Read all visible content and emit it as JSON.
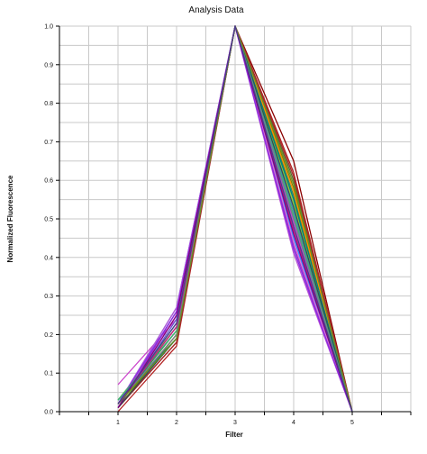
{
  "chart_data": {
    "type": "line",
    "title": "Analysis Data",
    "xlabel": "Filter",
    "ylabel": "Normalized Fluorescence",
    "xlim": [
      0,
      6
    ],
    "ylim": [
      0,
      1.0
    ],
    "x_ticks": [
      "1",
      "2",
      "3",
      "4",
      "5"
    ],
    "y_ticks": [
      "0.0",
      "0.1",
      "0.2",
      "0.3",
      "0.4",
      "0.5",
      "0.6",
      "0.7",
      "0.8",
      "0.9",
      "1.0"
    ],
    "grid": true,
    "x": [
      1,
      2,
      3,
      4,
      5
    ],
    "series": [
      {
        "color": "#cc44cc",
        "values": [
          0.07,
          0.24,
          1.0,
          0.49,
          0.0
        ]
      },
      {
        "color": "#20b2aa",
        "values": [
          0.03,
          0.22,
          1.0,
          0.55,
          0.0
        ]
      },
      {
        "color": "#1e90ff",
        "values": [
          0.02,
          0.27,
          1.0,
          0.45,
          0.0
        ]
      },
      {
        "color": "#8b0000",
        "values": [
          0.01,
          0.18,
          1.0,
          0.65,
          0.0
        ]
      },
      {
        "color": "#b22222",
        "values": [
          0.0,
          0.17,
          1.0,
          0.62,
          0.0
        ]
      },
      {
        "color": "#556b2f",
        "values": [
          0.02,
          0.19,
          1.0,
          0.6,
          0.0
        ]
      },
      {
        "color": "#808000",
        "values": [
          0.01,
          0.2,
          1.0,
          0.58,
          0.0
        ]
      },
      {
        "color": "#2e8b57",
        "values": [
          0.02,
          0.21,
          1.0,
          0.56,
          0.0
        ]
      },
      {
        "color": "#9acd32",
        "values": [
          0.03,
          0.22,
          1.0,
          0.54,
          0.0
        ]
      },
      {
        "color": "#4682b4",
        "values": [
          0.02,
          0.23,
          1.0,
          0.52,
          0.0
        ]
      },
      {
        "color": "#6a5acd",
        "values": [
          0.01,
          0.24,
          1.0,
          0.5,
          0.0
        ]
      },
      {
        "color": "#ff8c00",
        "values": [
          0.02,
          0.2,
          1.0,
          0.57,
          0.0
        ]
      },
      {
        "color": "#008080",
        "values": [
          0.03,
          0.19,
          1.0,
          0.55,
          0.0
        ]
      },
      {
        "color": "#a52a2a",
        "values": [
          0.01,
          0.18,
          1.0,
          0.61,
          0.0
        ]
      },
      {
        "color": "#9932cc",
        "values": [
          0.01,
          0.26,
          1.0,
          0.43,
          0.0
        ]
      },
      {
        "color": "#ba55d3",
        "values": [
          0.02,
          0.27,
          1.0,
          0.41,
          0.0
        ]
      },
      {
        "color": "#da70d6",
        "values": [
          0.01,
          0.25,
          1.0,
          0.44,
          0.0
        ]
      },
      {
        "color": "#8a2be2",
        "values": [
          0.02,
          0.26,
          1.0,
          0.42,
          0.0
        ]
      },
      {
        "color": "#2f4f4f",
        "values": [
          0.01,
          0.19,
          1.0,
          0.53,
          0.0
        ]
      },
      {
        "color": "#3cb371",
        "values": [
          0.03,
          0.21,
          1.0,
          0.51,
          0.0
        ]
      },
      {
        "color": "#c71585",
        "values": [
          0.02,
          0.22,
          1.0,
          0.47,
          0.0
        ]
      },
      {
        "color": "#708090",
        "values": [
          0.02,
          0.2,
          1.0,
          0.5,
          0.0
        ]
      },
      {
        "color": "#800080",
        "values": [
          0.01,
          0.25,
          1.0,
          0.46,
          0.0
        ]
      },
      {
        "color": "#6b8e23",
        "values": [
          0.02,
          0.19,
          1.0,
          0.59,
          0.0
        ]
      },
      {
        "color": "#483d8b",
        "values": [
          0.02,
          0.23,
          1.0,
          0.48,
          0.0
        ]
      }
    ]
  }
}
